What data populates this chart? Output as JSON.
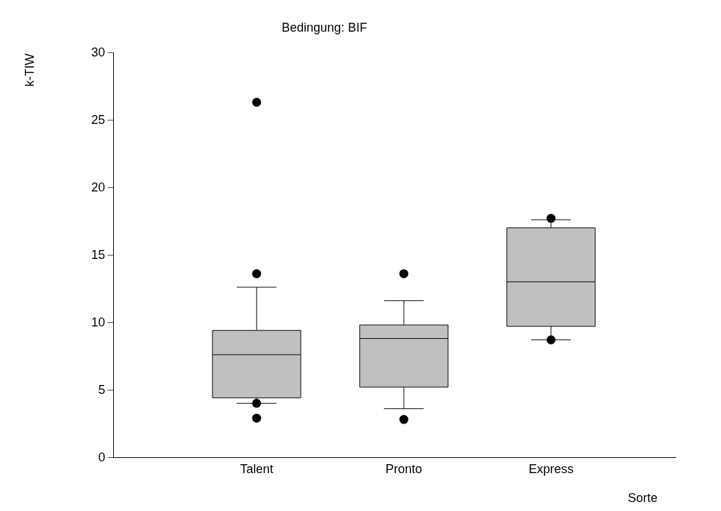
{
  "chart_data": {
    "type": "box",
    "title": "Bedingung: BIF",
    "xlabel": "Sorte",
    "ylabel": "k-TIW",
    "categories": [
      "Talent",
      "Pronto",
      "Express"
    ],
    "color": "#c0c0c0",
    "boxes": [
      {
        "low": 4.0,
        "q1": 4.4,
        "median": 7.6,
        "q3": 9.4,
        "high": 12.6,
        "outliers": [
          26.3,
          13.6,
          4.0,
          2.9
        ]
      },
      {
        "low": 3.6,
        "q1": 5.2,
        "median": 8.8,
        "q3": 9.8,
        "high": 11.6,
        "outliers": [
          13.6,
          2.8
        ]
      },
      {
        "low": 8.7,
        "q1": 9.7,
        "median": 13.0,
        "q3": 17.0,
        "high": 17.6,
        "outliers": [
          17.7,
          8.7
        ]
      }
    ],
    "ylim": [
      0,
      30
    ],
    "yticks": [
      0,
      5,
      10,
      15,
      20,
      25,
      30
    ],
    "marker": "circle"
  }
}
